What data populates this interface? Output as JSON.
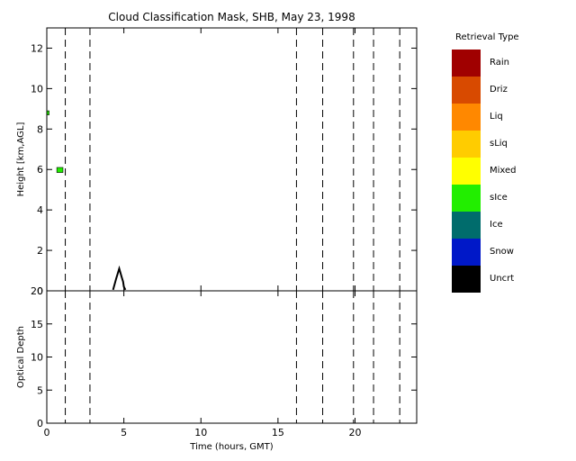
{
  "chart_data": [
    {
      "type": "heatmap",
      "title": "Cloud Classification Mask, SHB, May 23, 1998",
      "xlabel": "",
      "ylabel": "Height [km,AGL]",
      "xlim": [
        0,
        24
      ],
      "ylim": [
        0,
        13
      ],
      "xticks": [
        0,
        5,
        10,
        15,
        20
      ],
      "yticks": [
        0,
        2,
        4,
        6,
        8,
        10,
        12
      ],
      "grid": false,
      "dashed_time_markers": [
        1.2,
        2.8,
        16.2,
        17.9,
        19.9,
        21.2,
        22.9
      ],
      "cloud_cells": [
        {
          "t0": 0.0,
          "t1": 0.15,
          "h0": 8.7,
          "h1": 8.9,
          "class": "sIce"
        },
        {
          "t0": 0.65,
          "t1": 1.05,
          "h0": 5.85,
          "h1": 6.1,
          "class": "sIce"
        }
      ],
      "outline_trace": {
        "class": "Uncrt",
        "points": [
          [
            4.3,
            0.05
          ],
          [
            4.5,
            0.6
          ],
          [
            4.7,
            1.1
          ],
          [
            4.85,
            0.7
          ],
          [
            4.95,
            0.45
          ],
          [
            5.0,
            0.2
          ],
          [
            5.1,
            0.05
          ]
        ]
      }
    },
    {
      "type": "line",
      "title": "",
      "xlabel": "Time (hours, GMT)",
      "ylabel": "Optical Depth",
      "xlim": [
        0,
        24
      ],
      "ylim": [
        0,
        20
      ],
      "xticks": [
        0,
        5,
        10,
        15,
        20
      ],
      "yticks": [
        0,
        5,
        10,
        15,
        20
      ],
      "grid": false,
      "dashed_time_markers": [
        1.2,
        2.8,
        16.2,
        17.9,
        19.9,
        21.2,
        22.9
      ],
      "series": []
    }
  ],
  "legend": {
    "title": "Retrieval Type",
    "placement": "right",
    "items": [
      {
        "label": "Rain",
        "color": "#a00000"
      },
      {
        "label": "Driz",
        "color": "#d84a00"
      },
      {
        "label": "Liq",
        "color": "#ff8800"
      },
      {
        "label": "sLiq",
        "color": "#ffcc00"
      },
      {
        "label": "Mixed",
        "color": "#ffff00"
      },
      {
        "label": "sIce",
        "color": "#22ee00"
      },
      {
        "label": "Ice",
        "color": "#006c6c"
      },
      {
        "label": "Snow",
        "color": "#0018c8"
      },
      {
        "label": "Uncrt",
        "color": "#000000"
      }
    ]
  }
}
